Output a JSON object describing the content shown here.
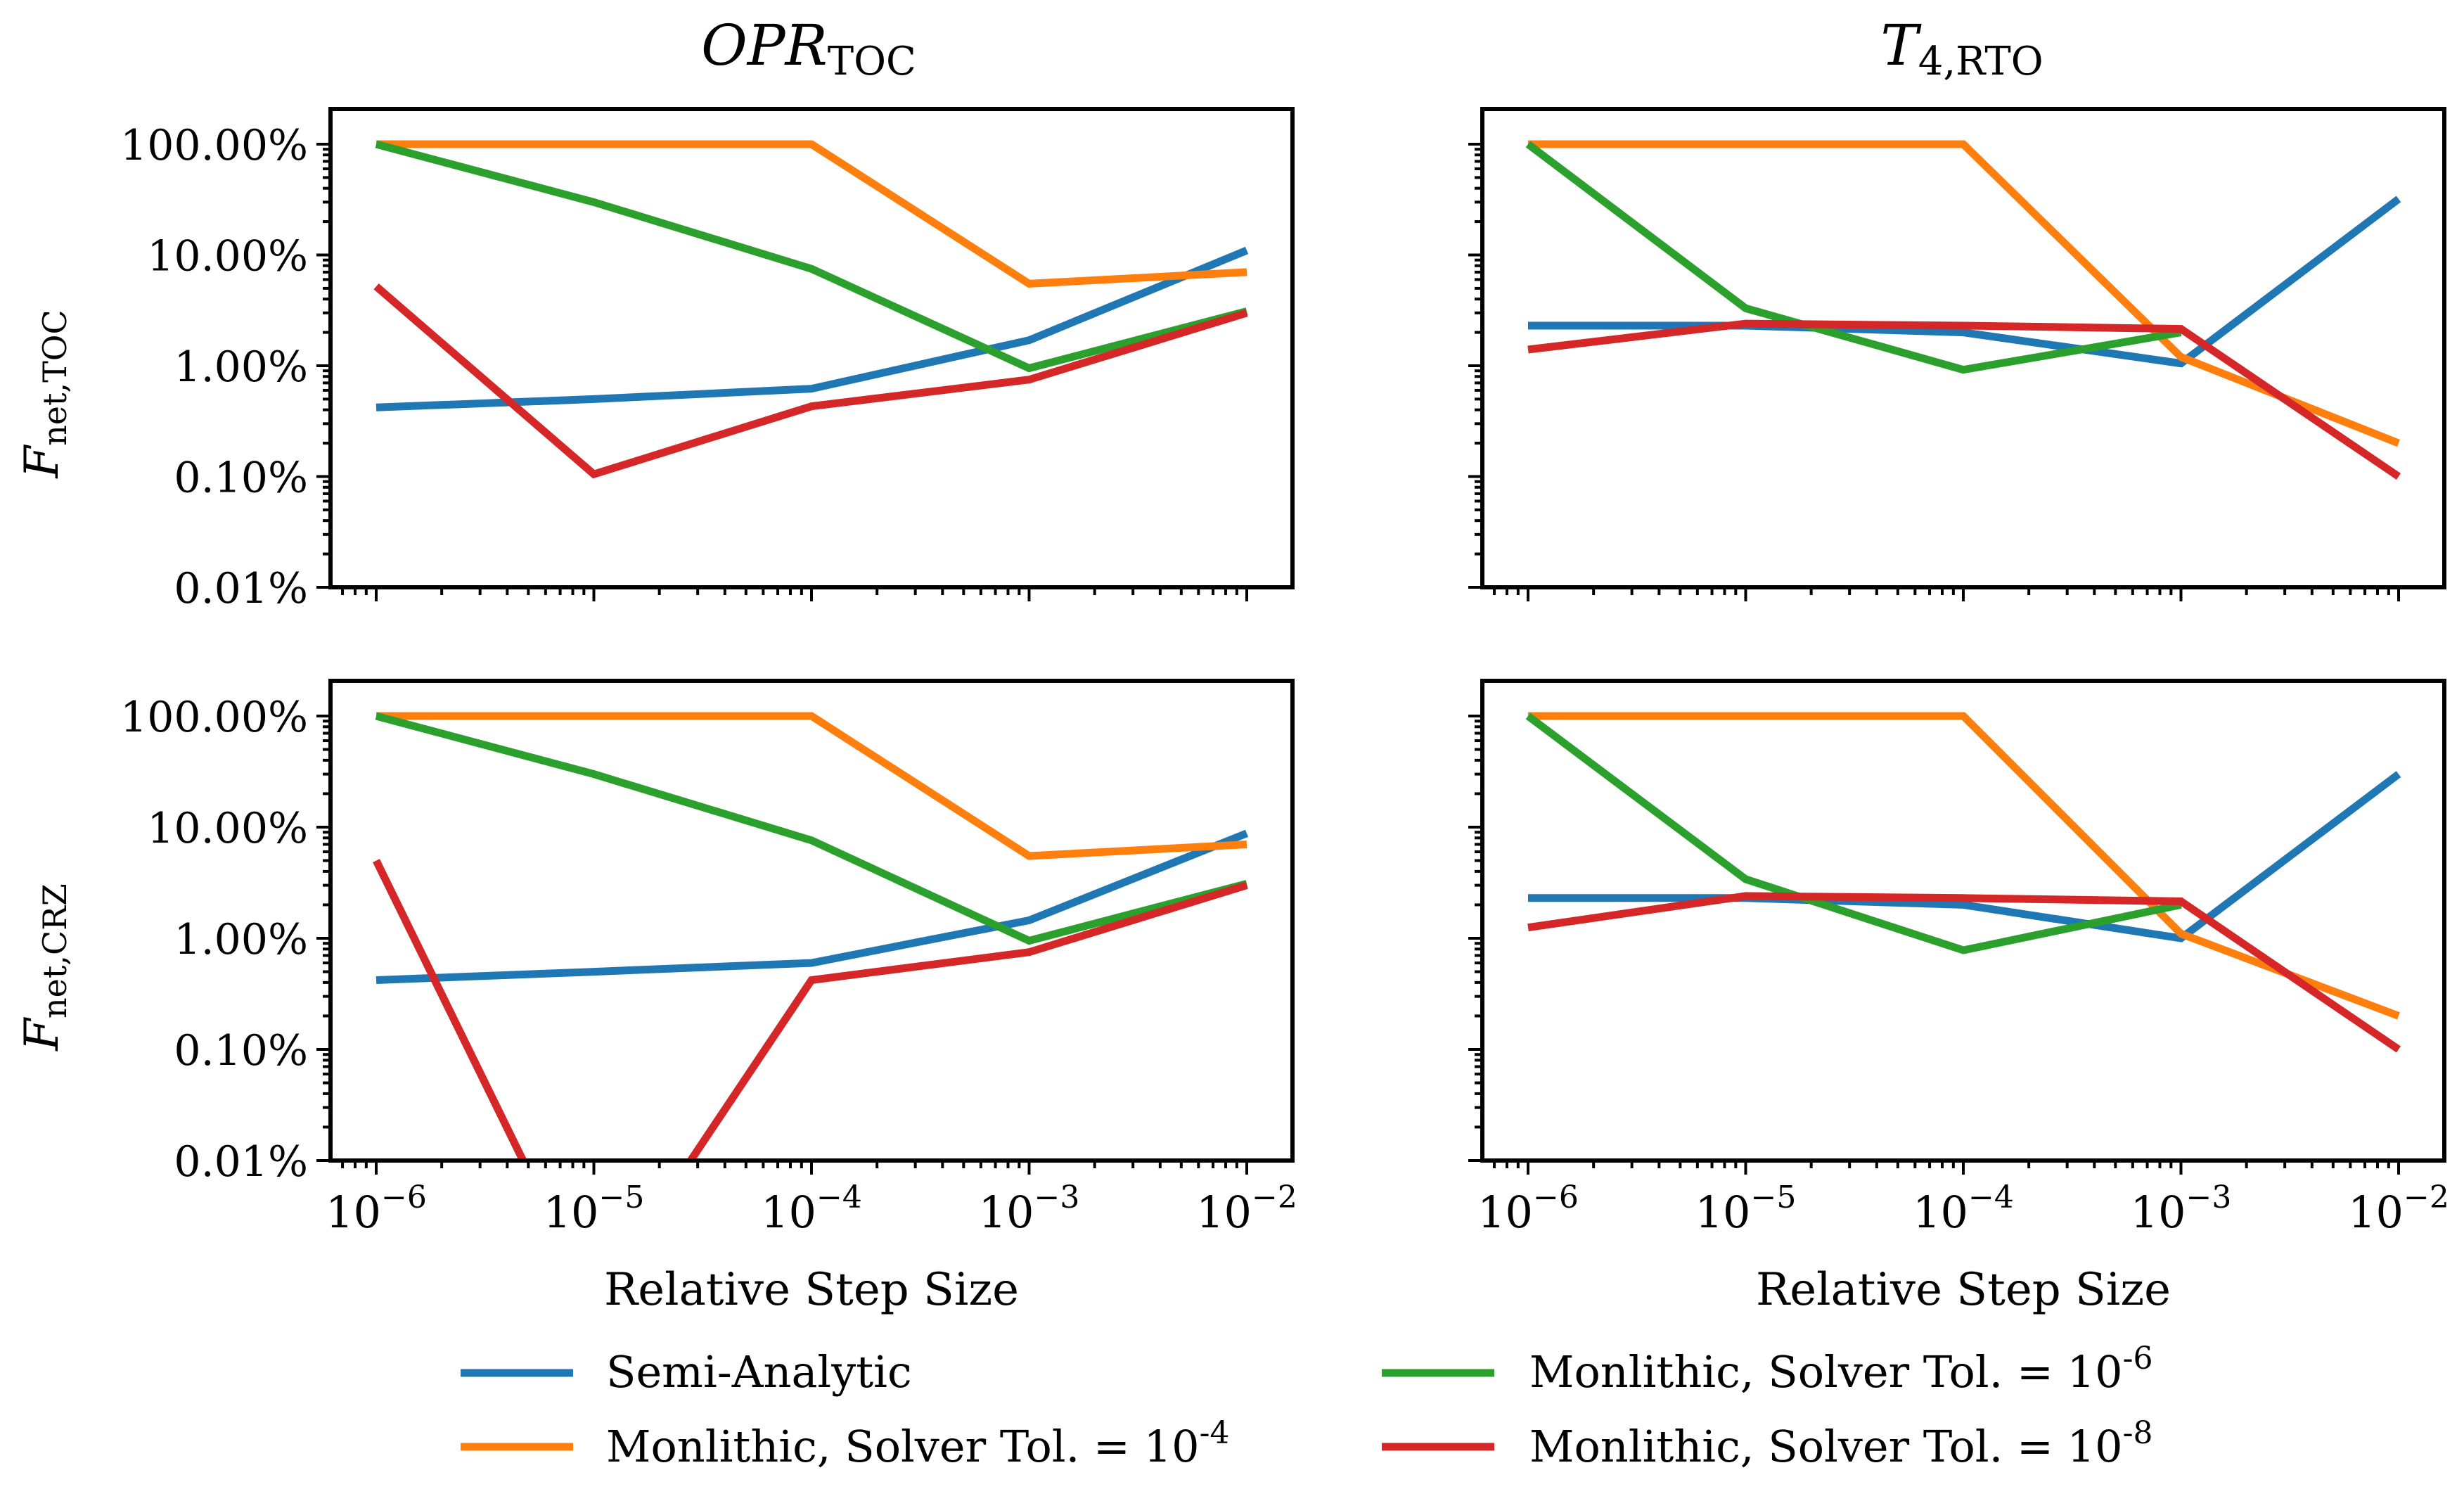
{
  "chart_data": [
    {
      "type": "line",
      "title": "OPR_TOC",
      "title_main": "OPR",
      "title_sub": "TOC",
      "xscale": "log",
      "yscale": "log",
      "xlim": [
        1e-06,
        0.01
      ],
      "ylim": [
        0.01,
        100
      ],
      "ylabel_main": "F",
      "ylabel_sub": "net,TOC",
      "xlabel": "",
      "x": [
        1e-06,
        1e-05,
        0.0001,
        0.001,
        0.01
      ],
      "series": [
        {
          "name": "Semi-Analytic",
          "values": [
            0.42,
            0.5,
            0.62,
            1.7,
            11
          ]
        },
        {
          "name": "Monlithic, Solver Tol. = 10^-4",
          "values": [
            100,
            100,
            100,
            5.5,
            7.0
          ]
        },
        {
          "name": "Monlithic, Solver Tol. = 10^-6",
          "values": [
            100,
            30,
            7.5,
            0.95,
            3.1
          ]
        },
        {
          "name": "Monlithic, Solver Tol. = 10^-8",
          "values": [
            5.2,
            0.105,
            0.43,
            0.75,
            3.0
          ]
        }
      ]
    },
    {
      "type": "line",
      "title": "T_4,RTO",
      "title_main": "T",
      "title_sub": "4,RTO",
      "xscale": "log",
      "yscale": "log",
      "xlim": [
        1e-06,
        0.01
      ],
      "ylim": [
        0.01,
        100
      ],
      "ylabel_main": "",
      "ylabel_sub": "",
      "xlabel": "",
      "x": [
        1e-06,
        1e-05,
        0.0001,
        0.001,
        0.01
      ],
      "series": [
        {
          "name": "Semi-Analytic",
          "values": [
            2.3,
            2.3,
            2.0,
            1.05,
            32
          ]
        },
        {
          "name": "Monlithic, Solver Tol. = 10^-4",
          "values": [
            100,
            100,
            100,
            1.2,
            0.2
          ]
        },
        {
          "name": "Monlithic, Solver Tol. = 10^-6",
          "values": [
            100,
            3.3,
            0.92,
            2.0,
            null
          ]
        },
        {
          "name": "Monlithic, Solver Tol. = 10^-8",
          "values": [
            1.4,
            2.4,
            2.3,
            2.15,
            0.1
          ]
        }
      ]
    },
    {
      "type": "line",
      "title": "",
      "xscale": "log",
      "yscale": "log",
      "xlim": [
        1e-06,
        0.01
      ],
      "ylim": [
        0.01,
        100
      ],
      "ylabel_main": "F",
      "ylabel_sub": "net,CRZ",
      "xlabel": "Relative Step Size",
      "x": [
        1e-06,
        1e-05,
        0.0001,
        0.001,
        0.01
      ],
      "series": [
        {
          "name": "Semi-Analytic",
          "values": [
            0.42,
            0.5,
            0.6,
            1.45,
            8.8
          ]
        },
        {
          "name": "Monlithic, Solver Tol. = 10^-4",
          "values": [
            100,
            100,
            100,
            5.5,
            7.0
          ]
        },
        {
          "name": "Monlithic, Solver Tol. = 10^-6",
          "values": [
            100,
            30,
            7.6,
            0.95,
            3.1
          ]
        },
        {
          "name": "Monlithic, Solver Tol. = 10^-8",
          "values": [
            5.0,
            0.0005,
            0.42,
            0.75,
            3.0
          ]
        }
      ]
    },
    {
      "type": "line",
      "title": "",
      "xscale": "log",
      "yscale": "log",
      "xlim": [
        1e-06,
        0.01
      ],
      "ylim": [
        0.01,
        100
      ],
      "ylabel_main": "",
      "ylabel_sub": "",
      "xlabel": "Relative Step Size",
      "x": [
        1e-06,
        1e-05,
        0.0001,
        0.001,
        0.01
      ],
      "series": [
        {
          "name": "Semi-Analytic",
          "values": [
            2.3,
            2.3,
            2.0,
            1.0,
            30
          ]
        },
        {
          "name": "Monlithic, Solver Tol. = 10^-4",
          "values": [
            100,
            100,
            100,
            1.1,
            0.2
          ]
        },
        {
          "name": "Monlithic, Solver Tol. = 10^-6",
          "values": [
            100,
            3.4,
            0.78,
            2.0,
            null
          ]
        },
        {
          "name": "Monlithic, Solver Tol. = 10^-8",
          "values": [
            1.25,
            2.4,
            2.3,
            2.15,
            0.1
          ]
        }
      ]
    }
  ],
  "y_tick_labels": [
    "100.00%",
    "10.00%",
    "1.00%",
    "0.10%",
    "0.01%"
  ],
  "x_tick_exponents": [
    "−6",
    "−5",
    "−4",
    "−3",
    "−2"
  ],
  "x_tick_base": "10",
  "legend": {
    "placement": "bottom-center",
    "entries": [
      {
        "label": "Semi-Analytic",
        "exp": "",
        "color": "#1f77b4"
      },
      {
        "label": "Monlithic, Solver Tol. = 10",
        "exp": "-4",
        "color": "#ff7f0e"
      },
      {
        "label": "Monlithic, Solver Tol. = 10",
        "exp": "-6",
        "color": "#2ca02c"
      },
      {
        "label": "Monlithic, Solver Tol. = 10",
        "exp": "-8",
        "color": "#d62728"
      }
    ]
  },
  "colors": [
    "#1f77b4",
    "#ff7f0e",
    "#2ca02c",
    "#d62728"
  ]
}
